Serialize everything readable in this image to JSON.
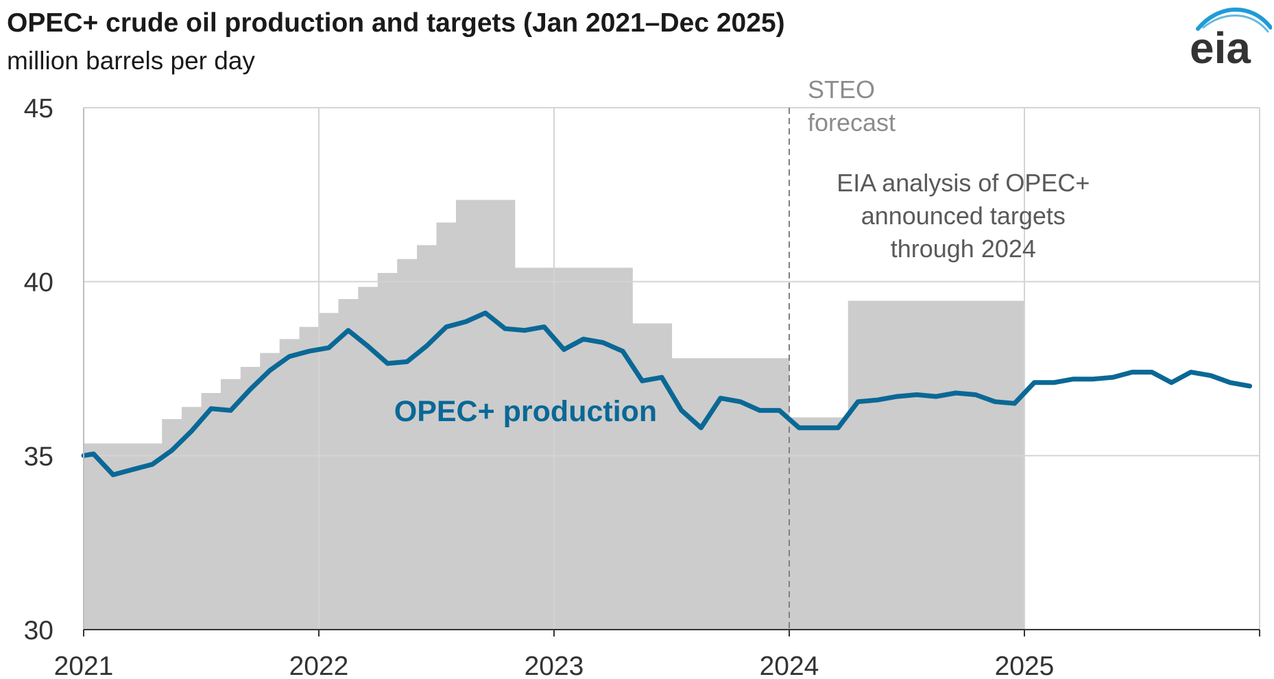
{
  "header": {
    "title": "OPEC+ crude oil production and targets (Jan 2021–Dec 2025)",
    "subtitle": "million barrels per day",
    "logo_text": "eia"
  },
  "colors": {
    "production_line": "#0a6896",
    "target_fill": "#cccccc",
    "grid": "#d4d4d4",
    "forecast_label": "#8c8c8c",
    "analysis_label": "#595959"
  },
  "chart_data": {
    "type": "line",
    "title": "OPEC+ crude oil production and targets (Jan 2021–Dec 2025)",
    "ylabel": "million barrels per day",
    "xlabel": "",
    "ylim": [
      30,
      45
    ],
    "xlim": [
      2021.0,
      2026.0
    ],
    "y_ticks": [
      30,
      35,
      40,
      45
    ],
    "x_ticks": [
      2021,
      2022,
      2023,
      2024,
      2025
    ],
    "x_tick_labels": [
      "2021",
      "2022",
      "2023",
      "2024",
      "2025"
    ],
    "grid": true,
    "forecast_start": 2024.0,
    "annotations": {
      "forecast": [
        "STEO",
        "forecast"
      ],
      "analysis": [
        "EIA analysis of OPEC+",
        "announced targets",
        "through 2024"
      ],
      "series_label": "OPEC+ production"
    },
    "targets": {
      "name": "OPEC+ announced targets",
      "steps": [
        {
          "start": 2021.0,
          "end": 2021.333,
          "value": 35.35
        },
        {
          "start": 2021.333,
          "end": 2021.417,
          "value": 36.05
        },
        {
          "start": 2021.417,
          "end": 2021.5,
          "value": 36.4
        },
        {
          "start": 2021.5,
          "end": 2021.583,
          "value": 36.8
        },
        {
          "start": 2021.583,
          "end": 2021.667,
          "value": 37.2
        },
        {
          "start": 2021.667,
          "end": 2021.75,
          "value": 37.55
        },
        {
          "start": 2021.75,
          "end": 2021.833,
          "value": 37.95
        },
        {
          "start": 2021.833,
          "end": 2021.917,
          "value": 38.35
        },
        {
          "start": 2021.917,
          "end": 2022.0,
          "value": 38.7
        },
        {
          "start": 2022.0,
          "end": 2022.083,
          "value": 39.1
        },
        {
          "start": 2022.083,
          "end": 2022.167,
          "value": 39.5
        },
        {
          "start": 2022.167,
          "end": 2022.25,
          "value": 39.85
        },
        {
          "start": 2022.25,
          "end": 2022.333,
          "value": 40.25
        },
        {
          "start": 2022.333,
          "end": 2022.417,
          "value": 40.65
        },
        {
          "start": 2022.417,
          "end": 2022.5,
          "value": 41.05
        },
        {
          "start": 2022.5,
          "end": 2022.583,
          "value": 41.7
        },
        {
          "start": 2022.583,
          "end": 2022.833,
          "value": 42.35
        },
        {
          "start": 2022.833,
          "end": 2023.333,
          "value": 40.4
        },
        {
          "start": 2023.333,
          "end": 2023.5,
          "value": 38.8
        },
        {
          "start": 2023.5,
          "end": 2024.0,
          "value": 37.8
        },
        {
          "start": 2024.0,
          "end": 2024.25,
          "value": 36.1
        },
        {
          "start": 2024.25,
          "end": 2025.0,
          "value": 39.45
        }
      ]
    },
    "series": [
      {
        "name": "OPEC+ production",
        "x": [
          2021.0,
          2021.042,
          2021.125,
          2021.208,
          2021.292,
          2021.375,
          2021.458,
          2021.542,
          2021.625,
          2021.708,
          2021.792,
          2021.875,
          2021.958,
          2022.042,
          2022.125,
          2022.208,
          2022.292,
          2022.375,
          2022.458,
          2022.542,
          2022.625,
          2022.708,
          2022.792,
          2022.875,
          2022.958,
          2023.042,
          2023.125,
          2023.208,
          2023.292,
          2023.375,
          2023.458,
          2023.542,
          2023.625,
          2023.708,
          2023.792,
          2023.875,
          2023.958,
          2024.042,
          2024.125,
          2024.208,
          2024.292,
          2024.375,
          2024.458,
          2024.542,
          2024.625,
          2024.708,
          2024.792,
          2024.875,
          2024.958,
          2025.042,
          2025.125,
          2025.208,
          2025.292,
          2025.375,
          2025.458,
          2025.542,
          2025.625,
          2025.708,
          2025.792,
          2025.875,
          2025.958
        ],
        "values": [
          35.0,
          35.05,
          34.45,
          34.6,
          34.75,
          35.15,
          35.7,
          36.35,
          36.3,
          36.9,
          37.45,
          37.85,
          38.0,
          38.1,
          38.6,
          38.15,
          37.65,
          37.7,
          38.15,
          38.7,
          38.85,
          39.1,
          38.65,
          38.6,
          38.7,
          38.05,
          38.35,
          38.25,
          38.0,
          37.15,
          37.25,
          36.3,
          35.8,
          36.65,
          36.55,
          36.3,
          36.3,
          35.8,
          35.8,
          35.8,
          36.55,
          36.6,
          36.7,
          36.75,
          36.7,
          36.8,
          36.75,
          36.55,
          36.5,
          37.1,
          37.1,
          37.2,
          37.2,
          37.25,
          37.4,
          37.4,
          37.1,
          37.4,
          37.3,
          37.1,
          37.0
        ]
      }
    ]
  }
}
